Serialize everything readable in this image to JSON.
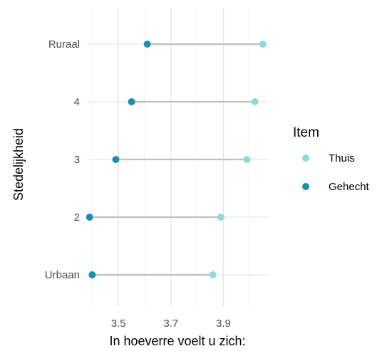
{
  "chart_data": {
    "type": "dumbbell",
    "xlabel": "In hoeverre voelt u zich:",
    "ylabel": "Stedelijkheid",
    "xlim": [
      3.38,
      4.07
    ],
    "x_ticks": [
      "3.5",
      "3.7",
      "3.9"
    ],
    "x_tick_values": [
      3.5,
      3.7,
      3.9
    ],
    "x_minor_ticks": [
      3.4,
      3.6,
      3.8,
      4.0
    ],
    "categories": [
      "Ruraal",
      "4",
      "3",
      "2",
      "Urbaan"
    ],
    "grid": true,
    "legend_position": "right",
    "legend": {
      "title": "Item",
      "entries": [
        "Thuis",
        "Gehecht"
      ]
    },
    "series": [
      {
        "name": "Thuis",
        "color": "#8fd9dc",
        "values": [
          4.05,
          4.02,
          3.99,
          3.89,
          3.86
        ]
      },
      {
        "name": "Gehecht",
        "color": "#1a8fae",
        "values": [
          3.61,
          3.55,
          3.49,
          3.39,
          3.4
        ]
      }
    ],
    "segment_color": "#c0c0c0"
  }
}
